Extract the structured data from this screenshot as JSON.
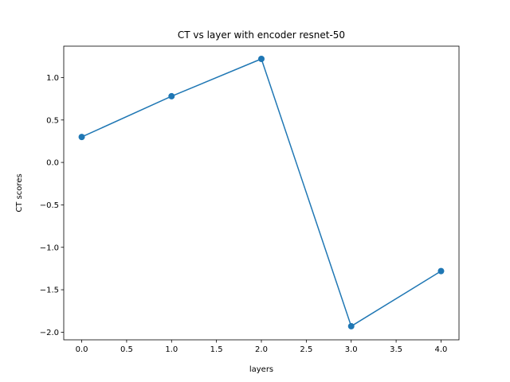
{
  "chart_data": {
    "type": "line",
    "title": "CT vs layer with encoder resnet-50",
    "xlabel": "layers",
    "ylabel": "CT scores",
    "x": [
      0,
      1,
      2,
      3,
      4
    ],
    "series": [
      {
        "values": [
          0.3,
          0.78,
          1.22,
          -1.93,
          -1.28
        ]
      }
    ],
    "xlim": [
      -0.2,
      4.2
    ],
    "ylim": [
      -2.09,
      1.37
    ],
    "xticks": [
      0.0,
      0.5,
      1.0,
      1.5,
      2.0,
      2.5,
      3.0,
      3.5,
      4.0
    ],
    "xtick_labels": [
      "0.0",
      "0.5",
      "1.0",
      "1.5",
      "2.0",
      "2.5",
      "3.0",
      "3.5",
      "4.0"
    ],
    "yticks": [
      -2.0,
      -1.5,
      -1.0,
      -0.5,
      0.0,
      0.5,
      1.0
    ],
    "ytick_labels": [
      "−2.0",
      "−1.5",
      "−1.0",
      "−0.5",
      "0.0",
      "0.5",
      "1.0"
    ],
    "markers": true,
    "grid": false,
    "legend": "none",
    "line_color": "#1f77b4"
  }
}
